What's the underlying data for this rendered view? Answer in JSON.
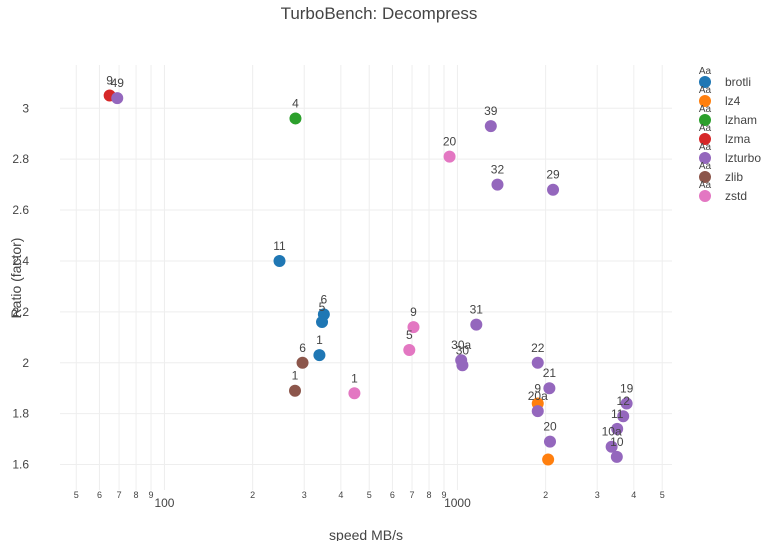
{
  "chart_data": {
    "type": "scatter",
    "title": "TurboBench: Decompress",
    "xlabel": "speed MB/s",
    "ylabel": "Ratio (factor)",
    "xscale": "log",
    "xlim": [
      44,
      5400
    ],
    "ylim": [
      1.5,
      3.17
    ],
    "grid": true,
    "legend_position": "right",
    "legend_marker_text": "Aa",
    "x_tick_labels": [
      {
        "x": 50,
        "label": "5",
        "minor": true
      },
      {
        "x": 60,
        "label": "6",
        "minor": true
      },
      {
        "x": 70,
        "label": "7",
        "minor": true
      },
      {
        "x": 80,
        "label": "8",
        "minor": true
      },
      {
        "x": 90,
        "label": "9",
        "minor": true
      },
      {
        "x": 100,
        "label": "100",
        "minor": false
      },
      {
        "x": 200,
        "label": "2",
        "minor": true
      },
      {
        "x": 300,
        "label": "3",
        "minor": true
      },
      {
        "x": 400,
        "label": "4",
        "minor": true
      },
      {
        "x": 500,
        "label": "5",
        "minor": true
      },
      {
        "x": 600,
        "label": "6",
        "minor": true
      },
      {
        "x": 700,
        "label": "7",
        "minor": true
      },
      {
        "x": 800,
        "label": "8",
        "minor": true
      },
      {
        "x": 900,
        "label": "9",
        "minor": true
      },
      {
        "x": 1000,
        "label": "1000",
        "minor": false
      },
      {
        "x": 2000,
        "label": "2",
        "minor": true
      },
      {
        "x": 3000,
        "label": "3",
        "minor": true
      },
      {
        "x": 4000,
        "label": "4",
        "minor": true
      },
      {
        "x": 5000,
        "label": "5",
        "minor": true
      }
    ],
    "y_ticks": [
      1.6,
      1.8,
      2,
      2.2,
      2.4,
      2.6,
      2.8,
      3
    ],
    "y_tick_labels": [
      "1.6",
      "1.8",
      "2",
      "2.2",
      "2.4",
      "2.6",
      "2.8",
      "3"
    ],
    "series": [
      {
        "name": "brotli",
        "color": "#1f77b4",
        "points": [
          {
            "x": 247,
            "y": 2.4,
            "label": "11"
          },
          {
            "x": 350,
            "y": 2.19,
            "label": "6"
          },
          {
            "x": 345,
            "y": 2.16,
            "label": "5"
          },
          {
            "x": 338,
            "y": 2.03,
            "label": "1"
          }
        ]
      },
      {
        "name": "lz4",
        "color": "#ff7f0e",
        "points": [
          {
            "x": 1880,
            "y": 1.84,
            "label": "9"
          },
          {
            "x": 2040,
            "y": 1.62,
            "label": ""
          }
        ]
      },
      {
        "name": "lzham",
        "color": "#2ca02c",
        "points": [
          {
            "x": 280,
            "y": 2.96,
            "label": "4"
          }
        ]
      },
      {
        "name": "lzma",
        "color": "#d62728",
        "points": [
          {
            "x": 65,
            "y": 3.05,
            "label": "9"
          }
        ]
      },
      {
        "name": "lzturbo",
        "color": "#9467bd",
        "points": [
          {
            "x": 69,
            "y": 3.04,
            "label": "49"
          },
          {
            "x": 1300,
            "y": 2.93,
            "label": "39"
          },
          {
            "x": 1370,
            "y": 2.7,
            "label": "32"
          },
          {
            "x": 2120,
            "y": 2.68,
            "label": "29"
          },
          {
            "x": 1160,
            "y": 2.15,
            "label": "31"
          },
          {
            "x": 1030,
            "y": 2.01,
            "label": "30a"
          },
          {
            "x": 1040,
            "y": 1.99,
            "label": "30"
          },
          {
            "x": 1880,
            "y": 2.0,
            "label": "22"
          },
          {
            "x": 2060,
            "y": 1.9,
            "label": "21"
          },
          {
            "x": 1880,
            "y": 1.81,
            "label": "20a"
          },
          {
            "x": 2070,
            "y": 1.69,
            "label": "20"
          },
          {
            "x": 3780,
            "y": 1.84,
            "label": "19"
          },
          {
            "x": 3680,
            "y": 1.79,
            "label": "12"
          },
          {
            "x": 3510,
            "y": 1.74,
            "label": "11"
          },
          {
            "x": 3360,
            "y": 1.67,
            "label": "10a"
          },
          {
            "x": 3500,
            "y": 1.63,
            "label": "10"
          }
        ]
      },
      {
        "name": "zlib",
        "color": "#8c564b",
        "points": [
          {
            "x": 279,
            "y": 1.89,
            "label": "1"
          },
          {
            "x": 296,
            "y": 2.0,
            "label": "6"
          }
        ]
      },
      {
        "name": "zstd",
        "color": "#e377c2",
        "points": [
          {
            "x": 940,
            "y": 2.81,
            "label": "20"
          },
          {
            "x": 708,
            "y": 2.14,
            "label": "9"
          },
          {
            "x": 685,
            "y": 2.05,
            "label": "5"
          },
          {
            "x": 445,
            "y": 1.88,
            "label": "1"
          }
        ]
      }
    ]
  }
}
